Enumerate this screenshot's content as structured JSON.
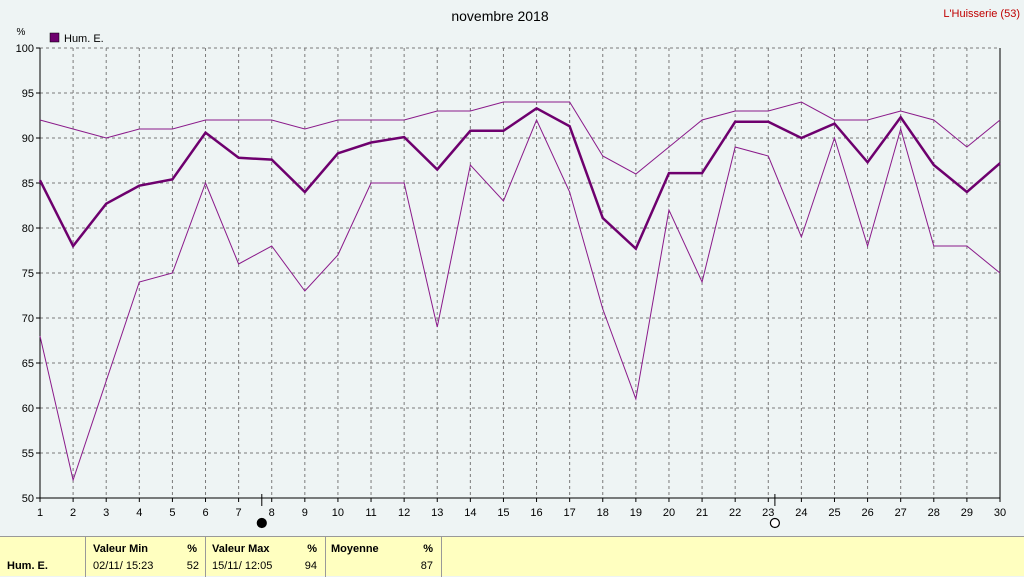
{
  "chart_data": {
    "type": "line",
    "title": "novembre 2018",
    "station": "L'Huisserie (53)",
    "ylabel": "%",
    "ylim": [
      50,
      100
    ],
    "yticks": [
      50,
      55,
      60,
      65,
      70,
      75,
      80,
      85,
      90,
      95,
      100
    ],
    "x": [
      1,
      2,
      3,
      4,
      5,
      6,
      7,
      8,
      9,
      10,
      11,
      12,
      13,
      14,
      15,
      16,
      17,
      18,
      19,
      20,
      21,
      22,
      23,
      24,
      25,
      26,
      27,
      28,
      29,
      30
    ],
    "grid": true,
    "legend": "top-left",
    "series": [
      {
        "name": "Hum. E.",
        "role": "mean",
        "color": "#6e006e",
        "values": [
          85.3,
          78,
          82.7,
          84.7,
          85.4,
          90.6,
          87.8,
          87.6,
          84,
          88.3,
          89.5,
          90.1,
          86.5,
          90.8,
          90.8,
          93.3,
          91.3,
          81.1,
          77.7,
          86.1,
          86.1,
          91.8,
          91.8,
          90,
          91.6,
          87.3,
          92.3,
          87,
          84,
          87.2
        ]
      },
      {
        "role": "max",
        "color": "#8a1a8a",
        "values": [
          92,
          91,
          90,
          91,
          91,
          92,
          92,
          92,
          91,
          92,
          92,
          92,
          93,
          93,
          94,
          94,
          94,
          88,
          86,
          89,
          92,
          93,
          93,
          94,
          92,
          92,
          93,
          92,
          89,
          92
        ]
      },
      {
        "role": "min",
        "color": "#8a1a8a",
        "values": [
          68,
          52,
          63,
          74,
          75,
          85,
          76,
          78,
          73,
          77,
          85,
          85,
          69,
          87,
          83,
          92,
          84,
          71,
          61,
          82,
          74,
          89,
          88,
          79,
          90,
          78,
          91,
          78,
          78,
          75
        ]
      }
    ],
    "moon_markers": [
      {
        "day": 7.7,
        "phase": "new-moon"
      },
      {
        "day": 23.2,
        "phase": "full-moon"
      }
    ]
  },
  "footer": {
    "series_label": "Hum. E.",
    "min": {
      "header": "Valeur Min",
      "unit": "%",
      "date": "02/11/ 15:23",
      "value": "52"
    },
    "max": {
      "header": "Valeur Max",
      "unit": "%",
      "date": "15/11/ 12:05",
      "value": "94"
    },
    "avg": {
      "header": "Moyenne",
      "unit": "%",
      "value": "87"
    }
  }
}
